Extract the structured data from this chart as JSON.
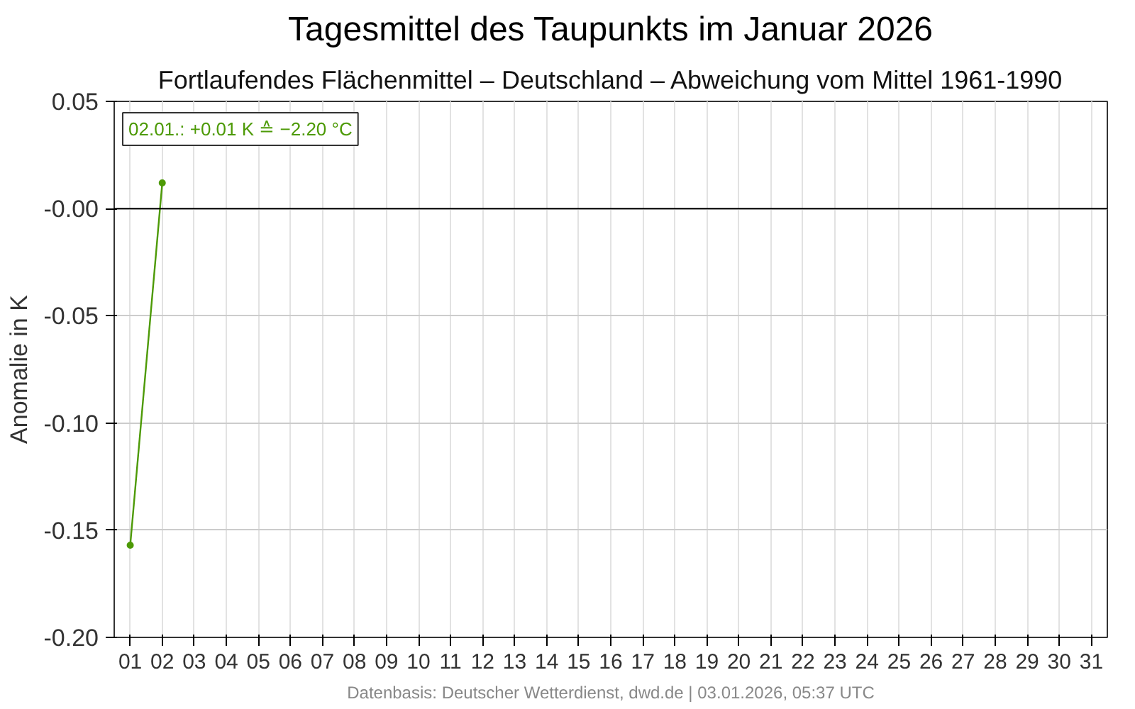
{
  "chart_data": {
    "type": "line",
    "title": "Tagesmittel des Taupunkts im Januar 2026",
    "subtitle": "Fortlaufendes Flächenmittel – Deutschland – Abweichung vom Mittel 1961-1990",
    "ylabel": "Anomalie in K",
    "categories": [
      "01",
      "02",
      "03",
      "04",
      "05",
      "06",
      "07",
      "08",
      "09",
      "10",
      "11",
      "12",
      "13",
      "14",
      "15",
      "16",
      "17",
      "18",
      "19",
      "20",
      "21",
      "22",
      "23",
      "24",
      "25",
      "26",
      "27",
      "28",
      "29",
      "30",
      "31"
    ],
    "series": [
      {
        "color": "#4d9a06",
        "values": [
          -0.157,
          0.012,
          null,
          null,
          null,
          null,
          null,
          null,
          null,
          null,
          null,
          null,
          null,
          null,
          null,
          null,
          null,
          null,
          null,
          null,
          null,
          null,
          null,
          null,
          null,
          null,
          null,
          null,
          null,
          null,
          null
        ]
      }
    ],
    "ylim": [
      -0.2,
      0.05
    ],
    "yticks": [
      0.05,
      {
        "value": 0,
        "label": "-0.00"
      },
      -0.05,
      {
        "value": -0.1,
        "label": "-0.10"
      },
      -0.15,
      {
        "value": -0.2,
        "label": "-0.20"
      }
    ],
    "ref_lines": [
      {
        "axis": "y",
        "value": 0,
        "color": "#000000"
      }
    ],
    "annotations": [
      "02.01.: +0.01 K ≙ −2.20 °C",
      "Datenbasis: Deutscher Wetterdienst, dwd.de | 03.01.2026, 05:37 UTC"
    ],
    "grid": true,
    "marker": "circle",
    "line_style": "solid"
  }
}
